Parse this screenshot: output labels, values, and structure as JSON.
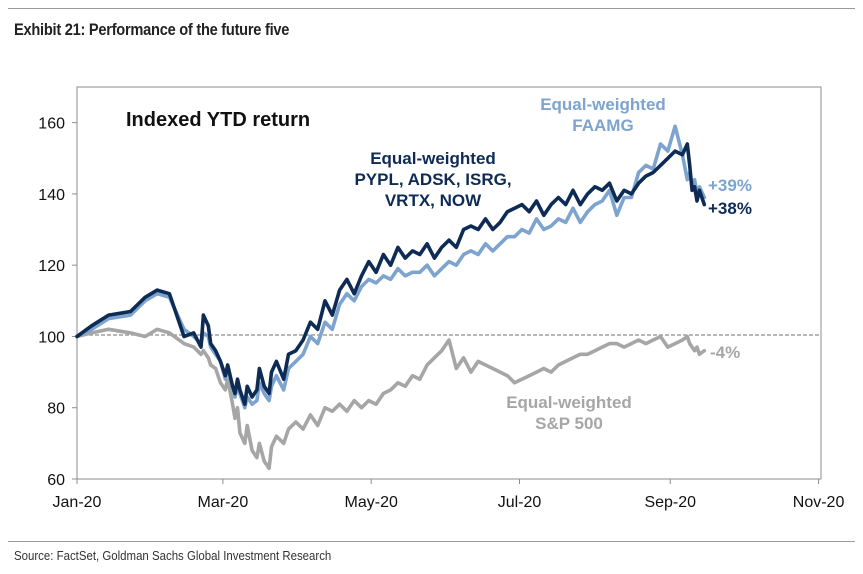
{
  "header": {
    "title": "Exhibit 21: Performance of the future five"
  },
  "footer": {
    "source": "Source: FactSet, Goldman Sachs Global Investment Research"
  },
  "chart_data": {
    "type": "line",
    "title": "Indexed YTD return",
    "xlabel": "",
    "ylabel": "",
    "ylim": [
      60,
      170
    ],
    "xlim_days": [
      0,
      306
    ],
    "y_ticks": [
      "60",
      "80",
      "100",
      "120",
      "140",
      "160"
    ],
    "y_tick_values": [
      60,
      80,
      100,
      120,
      140,
      160
    ],
    "x_ticks": [
      "Jan-20",
      "Mar-20",
      "May-20",
      "Jul-20",
      "Sep-20",
      "Nov-20"
    ],
    "x_tick_days": [
      0,
      60,
      121,
      182,
      244,
      305
    ],
    "reference_line": 100,
    "colors": {
      "navy": "#0d2b55",
      "lightblue": "#7da3cf",
      "gray": "#a6a6a6"
    },
    "series": [
      {
        "name": "Equal-weighted PYPL, ADSK, ISRG, VRTX, NOW",
        "label_lines": [
          "Equal-weighted",
          "PYPL, ADSK, ISRG,",
          "VRTX, NOW"
        ],
        "end_label": "+38%",
        "color": "#0d2b55",
        "x": [
          0,
          6,
          13,
          22,
          28,
          33,
          38,
          44,
          48,
          51,
          52,
          54,
          55,
          57,
          59,
          61,
          62,
          64,
          65,
          66,
          67,
          69,
          70,
          72,
          74,
          75,
          77,
          79,
          80,
          82,
          85,
          87,
          90,
          93,
          96,
          99,
          102,
          105,
          108,
          111,
          114,
          117,
          120,
          123,
          126,
          129,
          132,
          135,
          138,
          141,
          144,
          147,
          150,
          153,
          156,
          159,
          162,
          165,
          168,
          171,
          174,
          177,
          180,
          183,
          186,
          189,
          192,
          195,
          198,
          201,
          204,
          207,
          210,
          213,
          216,
          219,
          222,
          225,
          228,
          231,
          234,
          237,
          240,
          243,
          246,
          249,
          251,
          252,
          253,
          254,
          255,
          256,
          258
        ],
        "values": [
          100,
          103,
          106,
          107,
          111,
          113,
          112,
          100,
          101,
          97,
          106,
          103,
          98,
          96,
          93,
          89,
          92,
          86,
          84,
          88,
          85,
          81,
          86,
          83,
          85,
          91,
          86,
          84,
          90,
          93,
          88,
          95,
          96,
          99,
          104,
          102,
          110,
          106,
          113,
          116,
          112,
          117,
          121,
          118,
          123,
          120,
          125,
          122,
          124,
          123,
          126,
          122,
          125,
          127,
          125,
          130,
          131,
          130,
          133,
          130,
          132,
          135,
          136,
          137,
          135,
          138,
          134,
          137,
          139,
          137,
          141,
          137,
          140,
          142,
          141,
          143,
          138,
          141,
          140,
          143,
          145,
          146,
          148,
          150,
          152,
          151,
          154,
          148,
          141,
          142,
          138,
          141,
          137
        ]
      },
      {
        "name": "Equal-weighted FAAMG",
        "label_lines": [
          "Equal-weighted",
          "FAAMG"
        ],
        "end_label": "+39%",
        "color": "#7da3cf",
        "x": [
          0,
          6,
          13,
          22,
          28,
          33,
          38,
          44,
          48,
          51,
          52,
          54,
          55,
          57,
          59,
          61,
          62,
          64,
          65,
          66,
          67,
          69,
          70,
          72,
          74,
          75,
          77,
          79,
          80,
          82,
          85,
          87,
          90,
          93,
          96,
          99,
          102,
          105,
          108,
          111,
          114,
          117,
          120,
          123,
          126,
          129,
          132,
          135,
          138,
          141,
          144,
          147,
          150,
          153,
          156,
          159,
          162,
          165,
          168,
          171,
          174,
          177,
          180,
          183,
          186,
          189,
          192,
          195,
          198,
          201,
          204,
          207,
          210,
          213,
          216,
          219,
          222,
          225,
          228,
          231,
          234,
          237,
          240,
          243,
          246,
          249,
          251,
          252,
          253,
          254,
          255,
          256,
          258
        ],
        "values": [
          100,
          102,
          105,
          106,
          110,
          112,
          111,
          102,
          100,
          98,
          101,
          100,
          97,
          95,
          93,
          88,
          91,
          86,
          83,
          86,
          84,
          80,
          83,
          81,
          82,
          87,
          84,
          82,
          86,
          89,
          85,
          91,
          93,
          95,
          100,
          98,
          104,
          102,
          109,
          112,
          110,
          114,
          116,
          115,
          117,
          116,
          119,
          117,
          118,
          118,
          120,
          117,
          119,
          121,
          120,
          123,
          124,
          123,
          126,
          124,
          126,
          128,
          128,
          130,
          129,
          133,
          130,
          131,
          133,
          132,
          136,
          132,
          135,
          137,
          138,
          141,
          134,
          139,
          139,
          146,
          148,
          147,
          154,
          152,
          159,
          151,
          144,
          146,
          142,
          144,
          140,
          142,
          139
        ]
      },
      {
        "name": "Equal-weighted S&P 500",
        "label_lines": [
          "Equal-weighted",
          "S&P 500"
        ],
        "end_label": "-4%",
        "color": "#a6a6a6",
        "x": [
          0,
          6,
          13,
          22,
          28,
          33,
          38,
          44,
          48,
          51,
          52,
          54,
          55,
          57,
          59,
          61,
          62,
          64,
          65,
          66,
          67,
          69,
          70,
          72,
          74,
          75,
          77,
          79,
          80,
          82,
          85,
          87,
          90,
          93,
          96,
          99,
          102,
          105,
          108,
          111,
          114,
          117,
          120,
          123,
          126,
          129,
          132,
          135,
          138,
          141,
          144,
          147,
          150,
          153,
          156,
          159,
          162,
          165,
          168,
          171,
          174,
          177,
          180,
          183,
          186,
          189,
          192,
          195,
          198,
          201,
          204,
          207,
          210,
          213,
          216,
          219,
          222,
          225,
          228,
          231,
          234,
          237,
          240,
          243,
          246,
          249,
          251,
          252,
          253,
          254,
          255,
          256,
          258
        ],
        "values": [
          100,
          101,
          102,
          101,
          100,
          102,
          101,
          98,
          97,
          95,
          96,
          94,
          92,
          91,
          87,
          85,
          88,
          81,
          77,
          80,
          73,
          70,
          75,
          68,
          66,
          70,
          65,
          63,
          69,
          72,
          70,
          74,
          76,
          74,
          78,
          75,
          80,
          79,
          81,
          79,
          82,
          80,
          82,
          81,
          84,
          85,
          87,
          86,
          89,
          88,
          92,
          94,
          96,
          99,
          91,
          94,
          90,
          93,
          92,
          91,
          90,
          89,
          87,
          88,
          89,
          90,
          91,
          90,
          92,
          93,
          94,
          95,
          95,
          96,
          97,
          98,
          98,
          97,
          98,
          99,
          98,
          99,
          100,
          97,
          98,
          99,
          100,
          98,
          97,
          96,
          97,
          95,
          96
        ]
      }
    ]
  }
}
